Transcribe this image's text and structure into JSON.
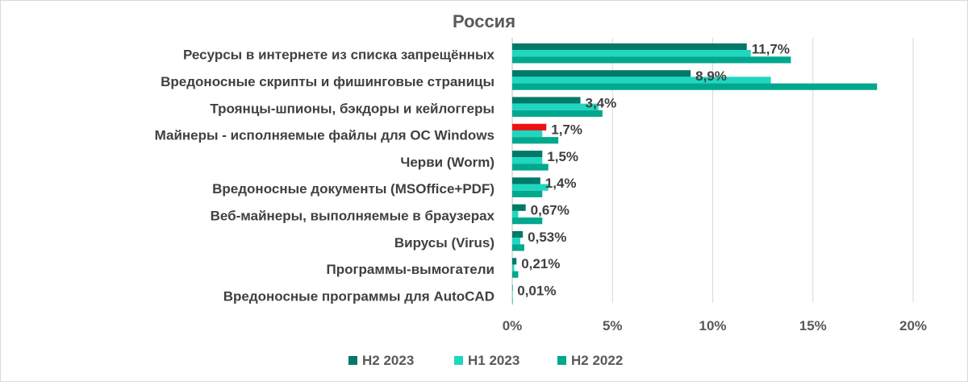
{
  "chart_data": {
    "type": "bar",
    "orientation": "horizontal",
    "title": "Россия",
    "categories": [
      "Ресурсы в интернете из списка запрещённых",
      "Вредоносные скрипты и фишинговые страницы",
      "Троянцы-шпионы, бэкдоры и кейлоггеры",
      "Майнеры - исполняемые файлы для ОС Windows",
      "Черви (Worm)",
      "Вредоносные документы (MSOffice+PDF)",
      "Веб-майнеры, выполняемые в браузерах",
      "Вирусы (Virus)",
      "Программы-вымогатели",
      "Вредоносные программы для AutoCAD"
    ],
    "series": [
      {
        "name": "H2 2023",
        "color": "#007a68",
        "values": [
          11.7,
          8.9,
          3.4,
          1.7,
          1.5,
          1.4,
          0.67,
          0.53,
          0.21,
          0.01
        ]
      },
      {
        "name": "H1 2023",
        "color": "#1fd6c0",
        "values": [
          11.9,
          12.9,
          4.3,
          1.5,
          1.5,
          1.8,
          0.3,
          0.4,
          0.1,
          0.01
        ]
      },
      {
        "name": "H2 2022",
        "color": "#00a88e",
        "values": [
          13.9,
          18.2,
          4.5,
          2.3,
          1.8,
          1.5,
          1.5,
          0.6,
          0.3,
          0.02
        ]
      }
    ],
    "highlight": {
      "category_index": 3,
      "series_index": 0,
      "color": "#ee1111"
    },
    "data_labels": [
      "11,7%",
      "8,9%",
      "3,4%",
      "1,7%",
      "1,5%",
      "1,4%",
      "0,67%",
      "0,53%",
      "0,21%",
      "0,01%"
    ],
    "x_ticks": [
      0,
      5,
      10,
      15,
      20
    ],
    "x_tick_labels": [
      "0%",
      "5%",
      "10%",
      "15%",
      "20%"
    ],
    "xlim": [
      0,
      20
    ],
    "grid": "vertical",
    "legend_position": "bottom",
    "xlabel": "",
    "ylabel": ""
  }
}
